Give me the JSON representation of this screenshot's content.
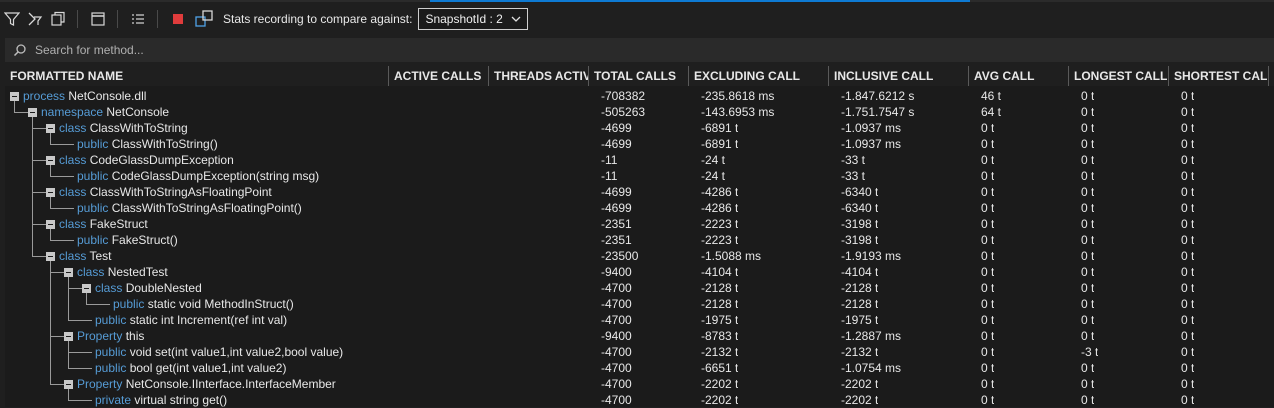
{
  "toolbar": {
    "stats_label": "Stats recording to compare against:",
    "snapshot_value": "SnapshotId : 2",
    "icons": [
      "filter-icon",
      "filter-method-icon",
      "copy-icon",
      "window-icon",
      "list-icon",
      "stop-record-icon",
      "compare-icon"
    ],
    "stop_color": "#e03c3c",
    "accent": "#0e7ad3"
  },
  "search": {
    "placeholder": "Search for method..."
  },
  "columns": [
    "FORMATTED NAME",
    "ACTIVE CALLS",
    "THREADS ACTIVI",
    "TOTAL CALLS",
    "EXCLUDING CALL",
    "INCLUSIVE CALL",
    "AVG CALL",
    "LONGEST CALL",
    "SHORTEST CALL"
  ],
  "rows": [
    {
      "kw": "process",
      "name": "NetConsole.dll",
      "total": "-708382",
      "excl": "-235.8618 ms",
      "incl": "-1.847.6212 s",
      "avg": "46 t",
      "longest": "0 t",
      "shortest": "0 t"
    },
    {
      "kw": "namespace",
      "name": "NetConsole",
      "total": "-505263",
      "excl": "-143.6953 ms",
      "incl": "-1.751.7547 s",
      "avg": "64 t",
      "longest": "0 t",
      "shortest": "0 t"
    },
    {
      "kw": "class",
      "name": "ClassWithToString",
      "total": "-4699",
      "excl": "-6891 t",
      "incl": "-1.0937 ms",
      "avg": "0 t",
      "longest": "0 t",
      "shortest": "0 t"
    },
    {
      "kw": "public",
      "name": "ClassWithToString()",
      "total": "-4699",
      "excl": "-6891 t",
      "incl": "-1.0937 ms",
      "avg": "0 t",
      "longest": "0 t",
      "shortest": "0 t"
    },
    {
      "kw": "class",
      "name": "CodeGlassDumpException",
      "total": "-11",
      "excl": "-24 t",
      "incl": "-33 t",
      "avg": "0 t",
      "longest": "0 t",
      "shortest": "0 t"
    },
    {
      "kw": "public",
      "name": "CodeGlassDumpException(string msg)",
      "total": "-11",
      "excl": "-24 t",
      "incl": "-33 t",
      "avg": "0 t",
      "longest": "0 t",
      "shortest": "0 t"
    },
    {
      "kw": "class",
      "name": "ClassWithToStringAsFloatingPoint",
      "total": "-4699",
      "excl": "-4286 t",
      "incl": "-6340 t",
      "avg": "0 t",
      "longest": "0 t",
      "shortest": "0 t"
    },
    {
      "kw": "public",
      "name": "ClassWithToStringAsFloatingPoint()",
      "total": "-4699",
      "excl": "-4286 t",
      "incl": "-6340 t",
      "avg": "0 t",
      "longest": "0 t",
      "shortest": "0 t"
    },
    {
      "kw": "class",
      "name": "FakeStruct",
      "total": "-2351",
      "excl": "-2223 t",
      "incl": "-3198 t",
      "avg": "0 t",
      "longest": "0 t",
      "shortest": "0 t"
    },
    {
      "kw": "public",
      "name": "FakeStruct()",
      "total": "-2351",
      "excl": "-2223 t",
      "incl": "-3198 t",
      "avg": "0 t",
      "longest": "0 t",
      "shortest": "0 t"
    },
    {
      "kw": "class",
      "name": "Test",
      "total": "-23500",
      "excl": "-1.5088 ms",
      "incl": "-1.9193 ms",
      "avg": "0 t",
      "longest": "0 t",
      "shortest": "0 t"
    },
    {
      "kw": "class",
      "name": "NestedTest",
      "total": "-9400",
      "excl": "-4104 t",
      "incl": "-4104 t",
      "avg": "0 t",
      "longest": "0 t",
      "shortest": "0 t"
    },
    {
      "kw": "class",
      "name": "DoubleNested",
      "total": "-4700",
      "excl": "-2128 t",
      "incl": "-2128 t",
      "avg": "0 t",
      "longest": "0 t",
      "shortest": "0 t"
    },
    {
      "kw": "public",
      "name": "static void MethodInStruct()",
      "total": "-4700",
      "excl": "-2128 t",
      "incl": "-2128 t",
      "avg": "0 t",
      "longest": "0 t",
      "shortest": "0 t"
    },
    {
      "kw": "public",
      "name": "static int Increment(ref int val)",
      "total": "-4700",
      "excl": "-1975 t",
      "incl": "-1975 t",
      "avg": "0 t",
      "longest": "0 t",
      "shortest": "0 t"
    },
    {
      "kw": "Property",
      "name": "this",
      "total": "-9400",
      "excl": "-8783 t",
      "incl": "-1.2887 ms",
      "avg": "0 t",
      "longest": "0 t",
      "shortest": "0 t"
    },
    {
      "kw": "public",
      "name": "void set(int value1,int value2,bool value)",
      "total": "-4700",
      "excl": "-2132 t",
      "incl": "-2132 t",
      "avg": "0 t",
      "longest": "-3 t",
      "shortest": "0 t"
    },
    {
      "kw": "public",
      "name": "bool get(int value1,int value2)",
      "total": "-4700",
      "excl": "-6651 t",
      "incl": "-1.0754 ms",
      "avg": "0 t",
      "longest": "0 t",
      "shortest": "0 t"
    },
    {
      "kw": "Property",
      "name": "NetConsole.IInterface.InterfaceMember",
      "total": "-4700",
      "excl": "-2202 t",
      "incl": "-2202 t",
      "avg": "0 t",
      "longest": "0 t",
      "shortest": "0 t"
    },
    {
      "kw": "private",
      "name": "virtual string get()",
      "total": "-4700",
      "excl": "-2202 t",
      "incl": "-2202 t",
      "avg": "0 t",
      "longest": "0 t",
      "shortest": "0 t"
    }
  ]
}
